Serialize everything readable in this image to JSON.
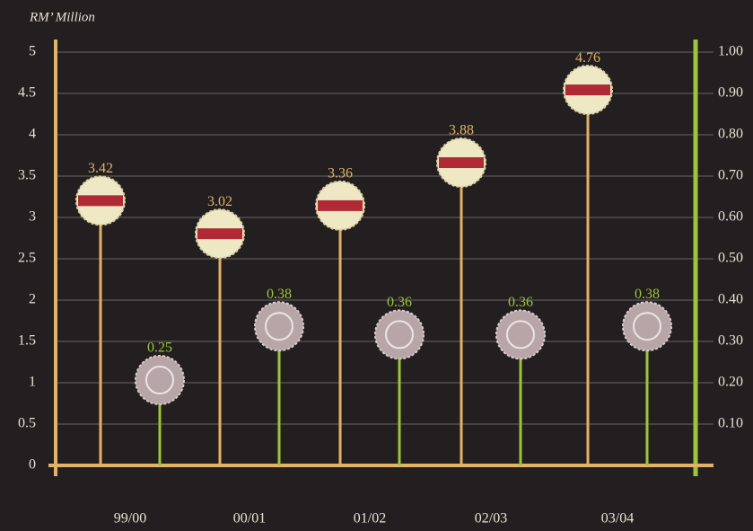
{
  "chart_data": {
    "type": "lollipop",
    "y_label": "RM’ Million",
    "categories": [
      "99/00",
      "00/01",
      "01/02",
      "02/03",
      "03/04"
    ],
    "series": [
      {
        "color": "#e2b267",
        "values": [
          3.42,
          3.02,
          3.36,
          3.88,
          4.76
        ]
      },
      {
        "color": "#9cc43c",
        "axis": "y2",
        "values": [
          0.25,
          0.38,
          0.36,
          0.36,
          0.38
        ]
      }
    ],
    "ylim": [
      0,
      5
    ],
    "yticks": [
      0,
      0.5,
      1,
      1.5,
      2,
      2.5,
      3,
      3.5,
      4,
      4.5,
      5
    ],
    "y2lim": [
      0,
      1
    ],
    "y2ticks": [
      {
        "value": 0.1,
        "label": "0.10"
      },
      {
        "value": 0.2,
        "label": "0.20"
      },
      {
        "value": 0.3,
        "label": "0.30"
      },
      {
        "value": 0.4,
        "label": "0.40"
      },
      {
        "value": 0.5,
        "label": "0.50"
      },
      {
        "value": 0.6,
        "label": "0.60"
      },
      {
        "value": 0.7,
        "label": "0.70"
      },
      {
        "value": 0.8,
        "label": "0.80"
      },
      {
        "value": 0.9,
        "label": "0.90"
      },
      {
        "value": 1.0,
        "label": "1.00"
      }
    ],
    "grid": true
  }
}
